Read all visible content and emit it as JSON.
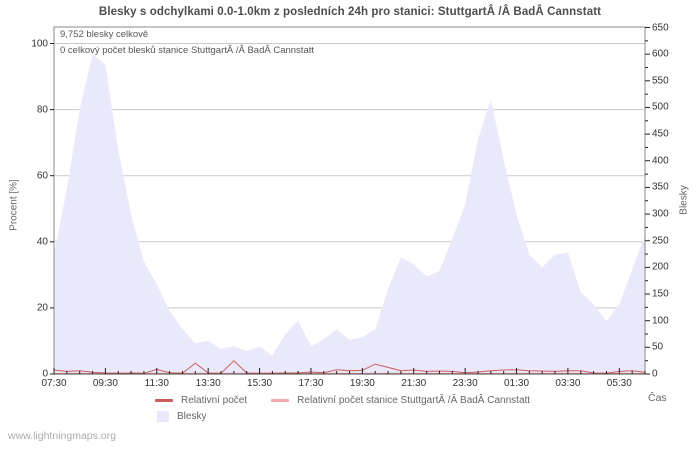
{
  "title": "Blesky s odchylkami 0.0-1.0km z posledních 24h pro stanici: StuttgartÂ /Â BadÂ Cannstatt",
  "annotation": {
    "line1": "9,752 blesky celkově",
    "line2": "0 celkový počet blesků stanice StuttgartÂ /Â BadÂ Cannstatt"
  },
  "watermark": "www.lightningmaps.org",
  "axes": {
    "left": {
      "title": "Procent  [%]",
      "ticks": [
        0,
        20,
        40,
        60,
        80,
        100
      ],
      "lim": [
        0,
        105
      ]
    },
    "right": {
      "title": "Blesky",
      "ticks": [
        0,
        50,
        100,
        150,
        200,
        250,
        300,
        350,
        400,
        450,
        500,
        550,
        600,
        650
      ],
      "lim": [
        0,
        650
      ]
    },
    "x": {
      "title": "Čas",
      "labels": [
        "07:30",
        "09:30",
        "11:30",
        "13:30",
        "15:30",
        "17:30",
        "19:30",
        "21:30",
        "23:30",
        "01:30",
        "03:30",
        "05:30"
      ]
    }
  },
  "legend": {
    "rel": {
      "label": "Relativní počet"
    },
    "station": {
      "label": "Relativní počet stanice StuttgartÂ /Â BadÂ Cannstatt"
    },
    "area": {
      "label": "Blesky"
    }
  },
  "colors": {
    "area_fill": "#e9e9fb",
    "rel_line": "#cd5c5c",
    "station_line": "#f9a8a8",
    "grid": "#c9c9c9",
    "frame": "#8a8a8a",
    "tick": "#222222",
    "bottom_axis": "#444444"
  },
  "chart_data": {
    "type": "area",
    "title": "Blesky s odchylkami 0.0-1.0km z posledních 24h pro stanici: StuttgartÂ /Â BadÂ Cannstatt",
    "xlabel": "Čas",
    "ylabel_left": "Procent [%]",
    "ylabel_right": "Blesky",
    "left_ylim": [
      0,
      105
    ],
    "right_ylim": [
      0,
      650
    ],
    "grid": "horizontal",
    "legend_position": "bottom",
    "total_strikes": 9752,
    "station_total_strikes": 0,
    "x": [
      "07:30",
      "08:00",
      "08:30",
      "09:00",
      "09:30",
      "10:00",
      "10:30",
      "11:00",
      "11:30",
      "12:00",
      "12:30",
      "13:00",
      "13:30",
      "14:00",
      "14:30",
      "15:00",
      "15:30",
      "16:00",
      "16:30",
      "17:00",
      "17:30",
      "18:00",
      "18:30",
      "19:00",
      "19:30",
      "20:00",
      "20:30",
      "21:00",
      "21:30",
      "22:00",
      "22:30",
      "23:00",
      "23:30",
      "00:00",
      "00:30",
      "01:00",
      "01:30",
      "02:00",
      "02:30",
      "03:00",
      "03:30",
      "04:00",
      "04:30",
      "05:00",
      "05:30",
      "06:00",
      "06:30"
    ],
    "series": [
      {
        "name": "Blesky",
        "type": "area",
        "axis": "right",
        "values": [
          225,
          346,
          496,
          600,
          580,
          421,
          299,
          211,
          168,
          118,
          84,
          58,
          62,
          47,
          52,
          43,
          52,
          34,
          75,
          100,
          52,
          65,
          84,
          64,
          69,
          84,
          159,
          219,
          206,
          183,
          193,
          253,
          318,
          440,
          515,
          402,
          299,
          224,
          200,
          224,
          228,
          153,
          131,
          99,
          131,
          196,
          262
        ]
      },
      {
        "name": "Relativní počet",
        "type": "line",
        "axis": "left",
        "values": [
          1.2,
          0.8,
          1.0,
          0.5,
          0.3,
          0.2,
          0.3,
          0.2,
          1.4,
          0.4,
          0.2,
          3.3,
          0.3,
          0.2,
          4.0,
          0.3,
          0.2,
          0.2,
          0.3,
          0.3,
          0.6,
          0.4,
          1.3,
          1.0,
          1.1,
          3.0,
          2.0,
          1.0,
          1.2,
          0.8,
          0.9,
          0.8,
          0.4,
          0.6,
          1.0,
          1.2,
          1.3,
          1.0,
          0.9,
          0.8,
          1.0,
          1.0,
          0.3,
          0.2,
          0.8,
          1.0,
          0.5
        ]
      },
      {
        "name": "Relativní počet stanice StuttgartÂ /Â BadÂ Cannstatt",
        "type": "line",
        "axis": "left",
        "values": [
          0,
          0,
          0,
          0,
          0,
          0,
          0,
          0,
          0,
          0,
          0,
          0,
          0,
          0,
          0,
          0,
          0,
          0,
          0,
          0,
          0,
          0,
          0,
          0,
          0,
          0,
          0,
          0,
          0,
          0,
          0,
          0,
          0,
          0,
          0,
          0,
          0,
          0,
          0,
          0,
          0,
          0,
          0,
          0,
          0,
          0,
          0
        ]
      }
    ]
  }
}
